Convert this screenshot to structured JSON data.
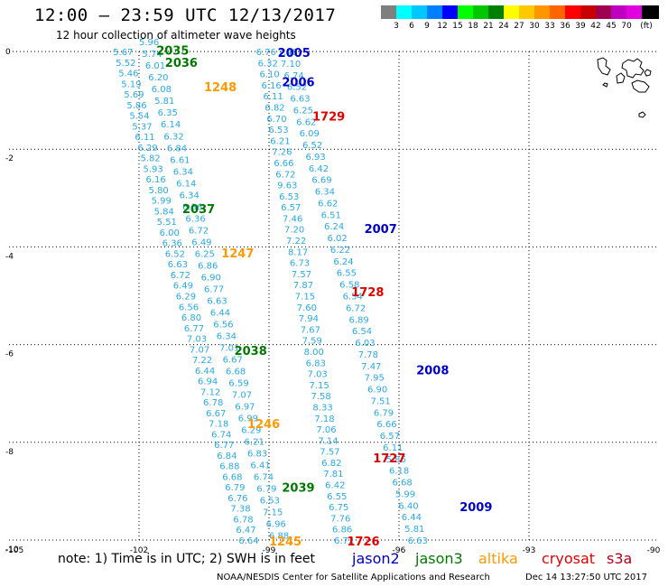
{
  "title": "12:00 — 23:59 UTC 12/13/2017",
  "subtitle": "12 hour collection of altimeter wave heights",
  "legend": {
    "unit": "(ft)",
    "colors": [
      "#7f7f7f",
      "#00ffff",
      "#00c8ff",
      "#0080ff",
      "#0000ff",
      "#00ff00",
      "#00c800",
      "#008000",
      "#ffff00",
      "#ffc800",
      "#ff9600",
      "#ff6400",
      "#ff0000",
      "#c80000",
      "#a00050",
      "#c000c0",
      "#e000e0",
      "#000000"
    ],
    "labels": [
      "3",
      "6",
      "9",
      "12",
      "15",
      "18",
      "21",
      "24",
      "27",
      "30",
      "33",
      "36",
      "39",
      "42",
      "45",
      "70"
    ]
  },
  "map": {
    "lon_range": [
      -105,
      -90
    ],
    "lat_range": [
      -10,
      0
    ],
    "lon_ticks": [
      "-105",
      "-102",
      "-99",
      "-96",
      "-93",
      "-90"
    ],
    "lat_ticks": [
      "0",
      "-2",
      "-4",
      "-6",
      "-8",
      "-10"
    ],
    "passes": [
      {
        "id": "2035",
        "mission": "jason3",
        "lon": -101.6,
        "lat": 0.05
      },
      {
        "id": "2036",
        "mission": "jason3",
        "lon": -101.4,
        "lat": -0.2
      },
      {
        "id": "1248",
        "mission": "altika",
        "lon": -100.5,
        "lat": -0.7
      },
      {
        "id": "2037",
        "mission": "jason3",
        "lon": -101.0,
        "lat": -3.2
      },
      {
        "id": "1247",
        "mission": "altika",
        "lon": -100.1,
        "lat": -4.1
      },
      {
        "id": "2038",
        "mission": "jason3",
        "lon": -99.8,
        "lat": -6.1
      },
      {
        "id": "1246",
        "mission": "altika",
        "lon": -99.5,
        "lat": -7.6
      },
      {
        "id": "2039",
        "mission": "jason3",
        "lon": -98.7,
        "lat": -8.9
      },
      {
        "id": "1245",
        "mission": "altika",
        "lon": -99.0,
        "lat": -10.0
      },
      {
        "id": "2005",
        "mission": "jason2",
        "lon": -98.8,
        "lat": 0.0
      },
      {
        "id": "2006",
        "mission": "jason2",
        "lon": -98.7,
        "lat": -0.6
      },
      {
        "id": "1729",
        "mission": "cryosat",
        "lon": -98.0,
        "lat": -1.3
      },
      {
        "id": "2007",
        "mission": "jason2",
        "lon": -96.8,
        "lat": -3.6
      },
      {
        "id": "1728",
        "mission": "cryosat",
        "lon": -97.1,
        "lat": -4.9
      },
      {
        "id": "2008",
        "mission": "jason2",
        "lon": -95.6,
        "lat": -6.5
      },
      {
        "id": "1727",
        "mission": "cryosat",
        "lon": -96.6,
        "lat": -8.3
      },
      {
        "id": "2009",
        "mission": "jason2",
        "lon": -94.6,
        "lat": -9.3
      },
      {
        "id": "1726",
        "mission": "cryosat",
        "lon": -97.2,
        "lat": -10.0
      }
    ],
    "tracks": [
      {
        "lat_start": 0.0,
        "lat_end": -10.0,
        "lon_start": -102.6,
        "lon_end": -99.7,
        "label_lon_offset": 0.0,
        "values": [
          "5.67",
          "5.52",
          "5.46",
          "5.19",
          "5.69",
          "5.86",
          "5.54",
          "5.37",
          "6.11",
          "6.29",
          "5.82",
          "5.93",
          "6.16",
          "5.80",
          "5.99",
          "5.84",
          "5.51",
          "6.00",
          "6.36",
          "6.52",
          "6.63",
          "6.72",
          "6.49",
          "6.29",
          "6.56",
          "6.80",
          "6.77",
          "7.03",
          "7.07",
          "7.22",
          "6.44",
          "6.94",
          "7.12",
          "6.78",
          "6.67",
          "7.18",
          "6.74",
          "6.77",
          "6.84",
          "6.88",
          "6.68",
          "6.79",
          "6.76",
          "7.38",
          "6.78",
          "6.47",
          "6.64"
        ]
      },
      {
        "lat_start": 0.2,
        "lat_end": -9.9,
        "lon_start": -102.0,
        "lon_end": -99.0,
        "label_lon_offset": 0.0,
        "values": [
          "5.96",
          "5.74",
          "6.01",
          "6.20",
          "6.08",
          "5.81",
          "6.35",
          "6.14",
          "6.32",
          "6.84",
          "6.61",
          "6.34",
          "6.14",
          "6.34",
          "6.36",
          "6.36",
          "6.72",
          "6.49",
          "6.25",
          "6.86",
          "6.90",
          "6.77",
          "6.63",
          "6.44",
          "6.56",
          "6.34",
          "7.01",
          "6.67",
          "6.68",
          "6.59",
          "7.07",
          "6.97",
          "6.99",
          "6.29",
          "6.21",
          "6.83",
          "6.41",
          "6.74",
          "6.79",
          "6.53",
          "7.15",
          "6.96",
          "6.88"
        ]
      },
      {
        "lat_start": 0.0,
        "lat_end": -10.0,
        "lon_start": -99.3,
        "lon_end": -97.5,
        "label_lon_offset": 0.0,
        "values": [
          "6.76",
          "6.32",
          "6.10",
          "6.16",
          "6.11",
          "6.82",
          "6.70",
          "6.53",
          "6.21",
          "7.26",
          "6.66",
          "6.72",
          "9.63",
          "6.53",
          "6.57",
          "7.46",
          "7.20",
          "7.22",
          "8.17",
          "6.73",
          "7.57",
          "7.87",
          "7.15",
          "7.60",
          "7.94",
          "7.67",
          "7.59",
          "8.00",
          "6.83",
          "7.03",
          "7.15",
          "7.58",
          "8.33",
          "7.18",
          "7.06",
          "7.14",
          "7.57",
          "6.82",
          "7.81",
          "6.42",
          "6.55",
          "6.75",
          "7.76",
          "6.86",
          "6.72"
        ]
      },
      {
        "lat_start": 0.0,
        "lat_end": -10.0,
        "lon_start": -98.8,
        "lon_end": -95.8,
        "label_lon_offset": 0.0,
        "values": [
          "7.48",
          "7.10",
          "6.74",
          "6.52",
          "6.63",
          "6.25",
          "6.62",
          "6.09",
          "6.52",
          "6.93",
          "6.42",
          "6.69",
          "6.34",
          "6.62",
          "6.51",
          "6.24",
          "6.02",
          "6.22",
          "6.24",
          "6.55",
          "6.58",
          "6.54",
          "6.72",
          "6.89",
          "6.54",
          "6.03",
          "7.78",
          "7.47",
          "7.95",
          "6.90",
          "7.51",
          "6.79",
          "6.66",
          "6.57",
          "6.11",
          "5.86",
          "6.18",
          "6.68",
          "5.99",
          "6.40",
          "6.44",
          "5.81",
          "6.63"
        ]
      }
    ],
    "islands": "galapagos"
  },
  "note": "note: 1) Time is in UTC; 2) SWH is in feet",
  "missions": [
    {
      "name": "jason2",
      "color": "#0000c8"
    },
    {
      "name": "jason3",
      "color": "#007800"
    },
    {
      "name": "altika",
      "color": "#ff9900"
    },
    {
      "name": "cryosat",
      "color": "#e00000"
    },
    {
      "name": "s3a",
      "color": "#b4001e"
    }
  ],
  "credit": "NOAA/NESDIS Center for Satellite Applications and Research",
  "timestamp": "Dec 14 13:27:50 UTC 2017"
}
